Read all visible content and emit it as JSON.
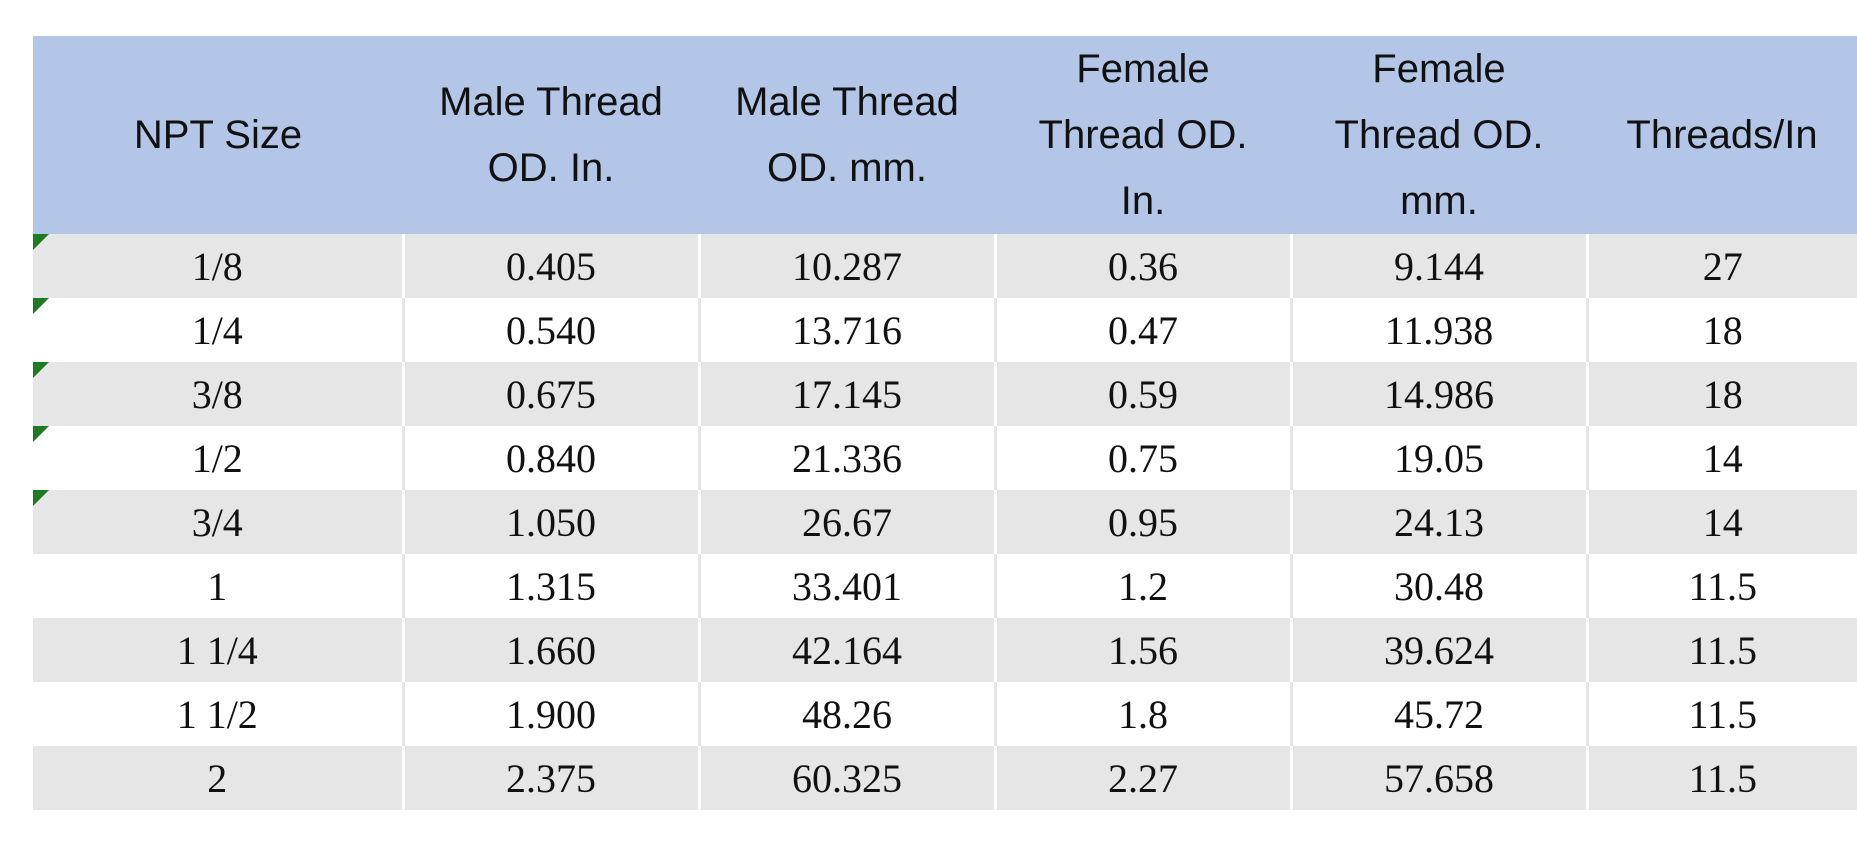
{
  "table": {
    "header": [
      [
        "NPT Size"
      ],
      [
        "Male Thread",
        "OD. In."
      ],
      [
        "Male Thread",
        "OD. mm."
      ],
      [
        "Female",
        "Thread OD.",
        "In."
      ],
      [
        "Female",
        "Thread OD.",
        "mm."
      ],
      [
        "Threads/In"
      ]
    ],
    "rows": [
      [
        "1/8",
        "0.405",
        "10.287",
        "0.36",
        "9.144",
        "27"
      ],
      [
        "1/4",
        "0.540",
        "13.716",
        "0.47",
        "11.938",
        "18"
      ],
      [
        "3/8",
        "0.675",
        "17.145",
        "0.59",
        "14.986",
        "18"
      ],
      [
        "1/2",
        "0.840",
        "21.336",
        "0.75",
        "19.05",
        "14"
      ],
      [
        "3/4",
        "1.050",
        "26.67",
        "0.95",
        "24.13",
        "14"
      ],
      [
        "1",
        "1.315",
        "33.401",
        "1.2",
        "30.48",
        "11.5"
      ],
      [
        "1 1/4",
        "1.660",
        "42.164",
        "1.56",
        "39.624",
        "11.5"
      ],
      [
        "1 1/2",
        "1.900",
        "48.26",
        "1.8",
        "45.72",
        "11.5"
      ],
      [
        "2",
        "2.375",
        "60.325",
        "2.27",
        "57.658",
        "11.5"
      ]
    ]
  }
}
